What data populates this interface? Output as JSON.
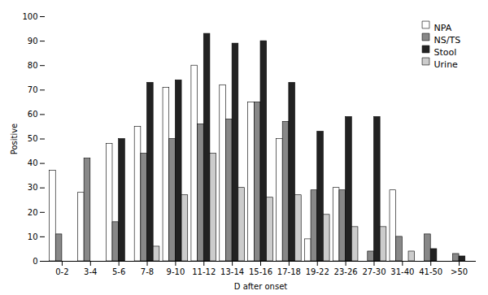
{
  "chart_data": {
    "type": "bar",
    "categories": [
      "0-2",
      "3-4",
      "5-6",
      "7-8",
      "9-10",
      "11-12",
      "13-14",
      "15-16",
      "17-18",
      "19-22",
      "23-26",
      "27-30",
      "31-40",
      "41-50",
      ">50"
    ],
    "series": [
      {
        "name": "NPA",
        "color": "#ffffff",
        "values": [
          37,
          28,
          48,
          55,
          71,
          80,
          72,
          65,
          50,
          9,
          30,
          0,
          29,
          0,
          0
        ]
      },
      {
        "name": "NS/TS",
        "color": "#888888",
        "values": [
          11,
          42,
          16,
          44,
          50,
          56,
          58,
          65,
          57,
          29,
          29,
          4,
          10,
          11,
          3
        ]
      },
      {
        "name": "Stool",
        "color": "#222222",
        "values": [
          0,
          0,
          50,
          73,
          74,
          93,
          89,
          90,
          73,
          53,
          59,
          59,
          0,
          5,
          2
        ]
      },
      {
        "name": "Urine",
        "color": "#cccccc",
        "values": [
          0,
          0,
          0,
          6,
          27,
          44,
          30,
          26,
          27,
          19,
          14,
          14,
          4,
          0,
          0
        ]
      }
    ],
    "xlabel": "D after onset",
    "ylabel": "Positive",
    "ylim": [
      0,
      100
    ],
    "yticks": [
      0,
      10,
      20,
      30,
      40,
      50,
      60,
      70,
      80,
      90,
      100
    ],
    "legend": "upper right",
    "grid": false
  }
}
